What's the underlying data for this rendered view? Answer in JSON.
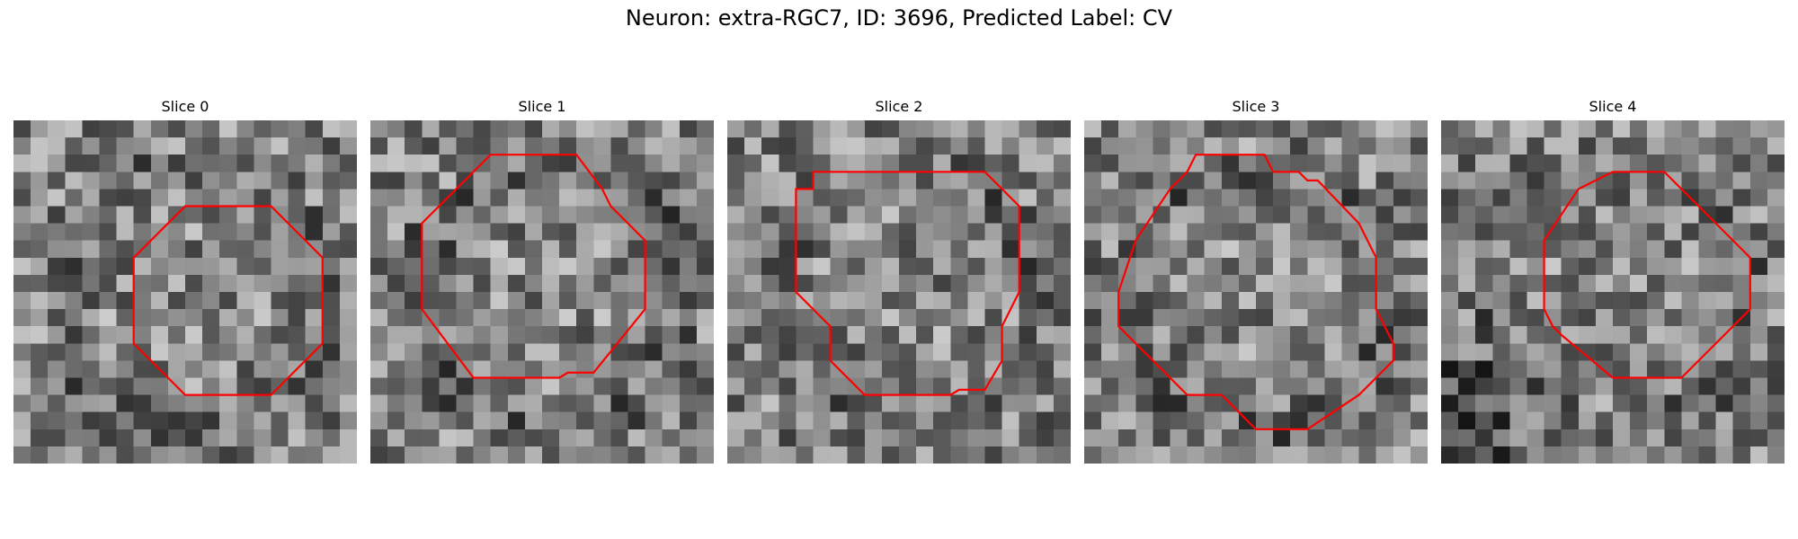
{
  "figure": {
    "title": "Neuron: extra-RGC7, ID: 3696, Predicted Label: CV"
  },
  "slices": [
    {
      "label": "Slice 0",
      "contour_color": "#ff0000",
      "contour": [
        [
          10,
          16
        ],
        [
          15,
          16
        ],
        [
          18,
          13
        ],
        [
          18,
          8
        ],
        [
          15,
          5
        ],
        [
          10,
          5
        ],
        [
          7,
          8
        ],
        [
          7,
          13
        ]
      ]
    },
    {
      "label": "Slice 1",
      "contour_color": "#ff0000",
      "contour": [
        [
          3,
          6
        ],
        [
          3,
          11
        ],
        [
          6,
          15
        ],
        [
          11,
          15
        ],
        [
          11.5,
          14.7
        ],
        [
          13,
          14.7
        ],
        [
          16,
          11
        ],
        [
          16,
          7
        ],
        [
          14,
          5
        ],
        [
          13.5,
          4
        ],
        [
          12,
          2
        ],
        [
          7,
          2
        ],
        [
          5,
          4
        ]
      ]
    },
    {
      "label": "Slice 2",
      "contour_color": "#ff0000",
      "contour": [
        [
          4,
          4
        ],
        [
          4,
          10
        ],
        [
          6,
          12
        ],
        [
          6,
          14
        ],
        [
          8,
          16
        ],
        [
          13,
          16
        ],
        [
          13.5,
          15.7
        ],
        [
          15,
          15.7
        ],
        [
          16,
          14
        ],
        [
          16,
          12
        ],
        [
          17,
          10
        ],
        [
          17,
          5
        ],
        [
          15,
          3
        ],
        [
          5,
          3
        ],
        [
          5,
          4
        ]
      ]
    },
    {
      "label": "Slice 3",
      "contour_color": "#ff0000",
      "contour": [
        [
          6.5,
          2
        ],
        [
          10.5,
          2
        ],
        [
          11,
          3
        ],
        [
          12.5,
          3
        ],
        [
          13,
          3.5
        ],
        [
          13.6,
          3.5
        ],
        [
          16,
          6
        ],
        [
          17,
          8
        ],
        [
          17,
          11
        ],
        [
          18,
          13
        ],
        [
          18,
          14
        ],
        [
          16,
          16
        ],
        [
          13,
          18
        ],
        [
          10,
          18
        ],
        [
          8,
          16
        ],
        [
          6,
          16
        ],
        [
          3,
          13
        ],
        [
          2,
          12
        ],
        [
          2,
          10
        ],
        [
          3,
          7
        ],
        [
          5,
          4
        ],
        [
          5.5,
          3.5
        ],
        [
          6,
          3
        ]
      ]
    },
    {
      "label": "Slice 4",
      "contour_color": "#ff0000",
      "contour": [
        [
          10,
          3
        ],
        [
          13,
          3
        ],
        [
          15,
          5
        ],
        [
          18,
          8
        ],
        [
          18,
          11
        ],
        [
          15,
          14
        ],
        [
          14,
          15
        ],
        [
          10,
          15
        ],
        [
          7,
          12.5
        ],
        [
          6.5,
          12
        ],
        [
          6,
          11
        ],
        [
          6,
          7
        ],
        [
          8,
          4
        ],
        [
          9,
          3.5
        ]
      ]
    }
  ]
}
